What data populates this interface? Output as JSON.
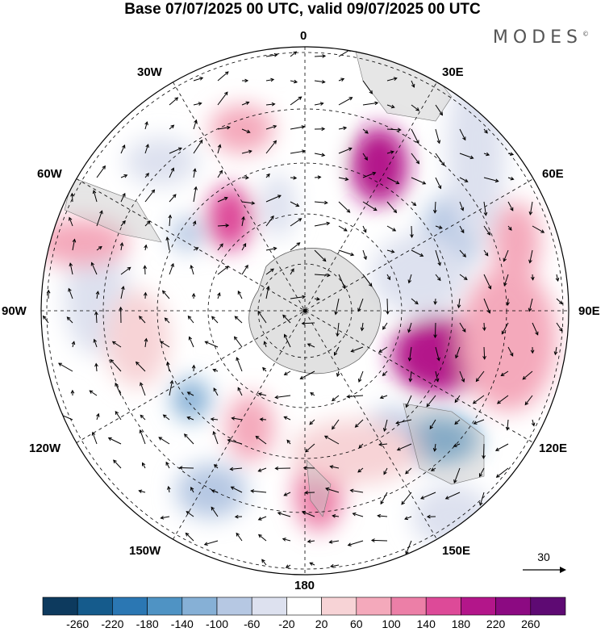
{
  "title": "Base 07/07/2025 00 UTC, valid 09/07/2025 00 UTC",
  "brand": "MODES",
  "brand_mark": "©",
  "meridian_labels": {
    "top": "0",
    "ne": "30E",
    "nw": "30W",
    "ene": "60E",
    "wnw": "60W",
    "east": "90E",
    "west": "90W",
    "ese": "120E",
    "wsw": "120W",
    "se": "150E",
    "sw": "150W",
    "bottom": "180"
  },
  "reference_vector": {
    "label": "30"
  },
  "colorbar": {
    "tick_labels": [
      "-260",
      "-220",
      "-180",
      "-140",
      "-100",
      "-60",
      "-20",
      "20",
      "60",
      "100",
      "140",
      "180",
      "220",
      "260"
    ],
    "colors": [
      "#0d3a5e",
      "#155b8c",
      "#2b77b3",
      "#4f93c4",
      "#86b0d6",
      "#b6c8e3",
      "#dde1ef",
      "#ffffff",
      "#f7d3d6",
      "#f4a9bb",
      "#ec7fa7",
      "#dd4a98",
      "#b3168a",
      "#8c0a82",
      "#5e0a73"
    ]
  },
  "map": {
    "projection": "south polar stereographic",
    "gridlines": "dashed",
    "vectors": "wind arrows"
  }
}
